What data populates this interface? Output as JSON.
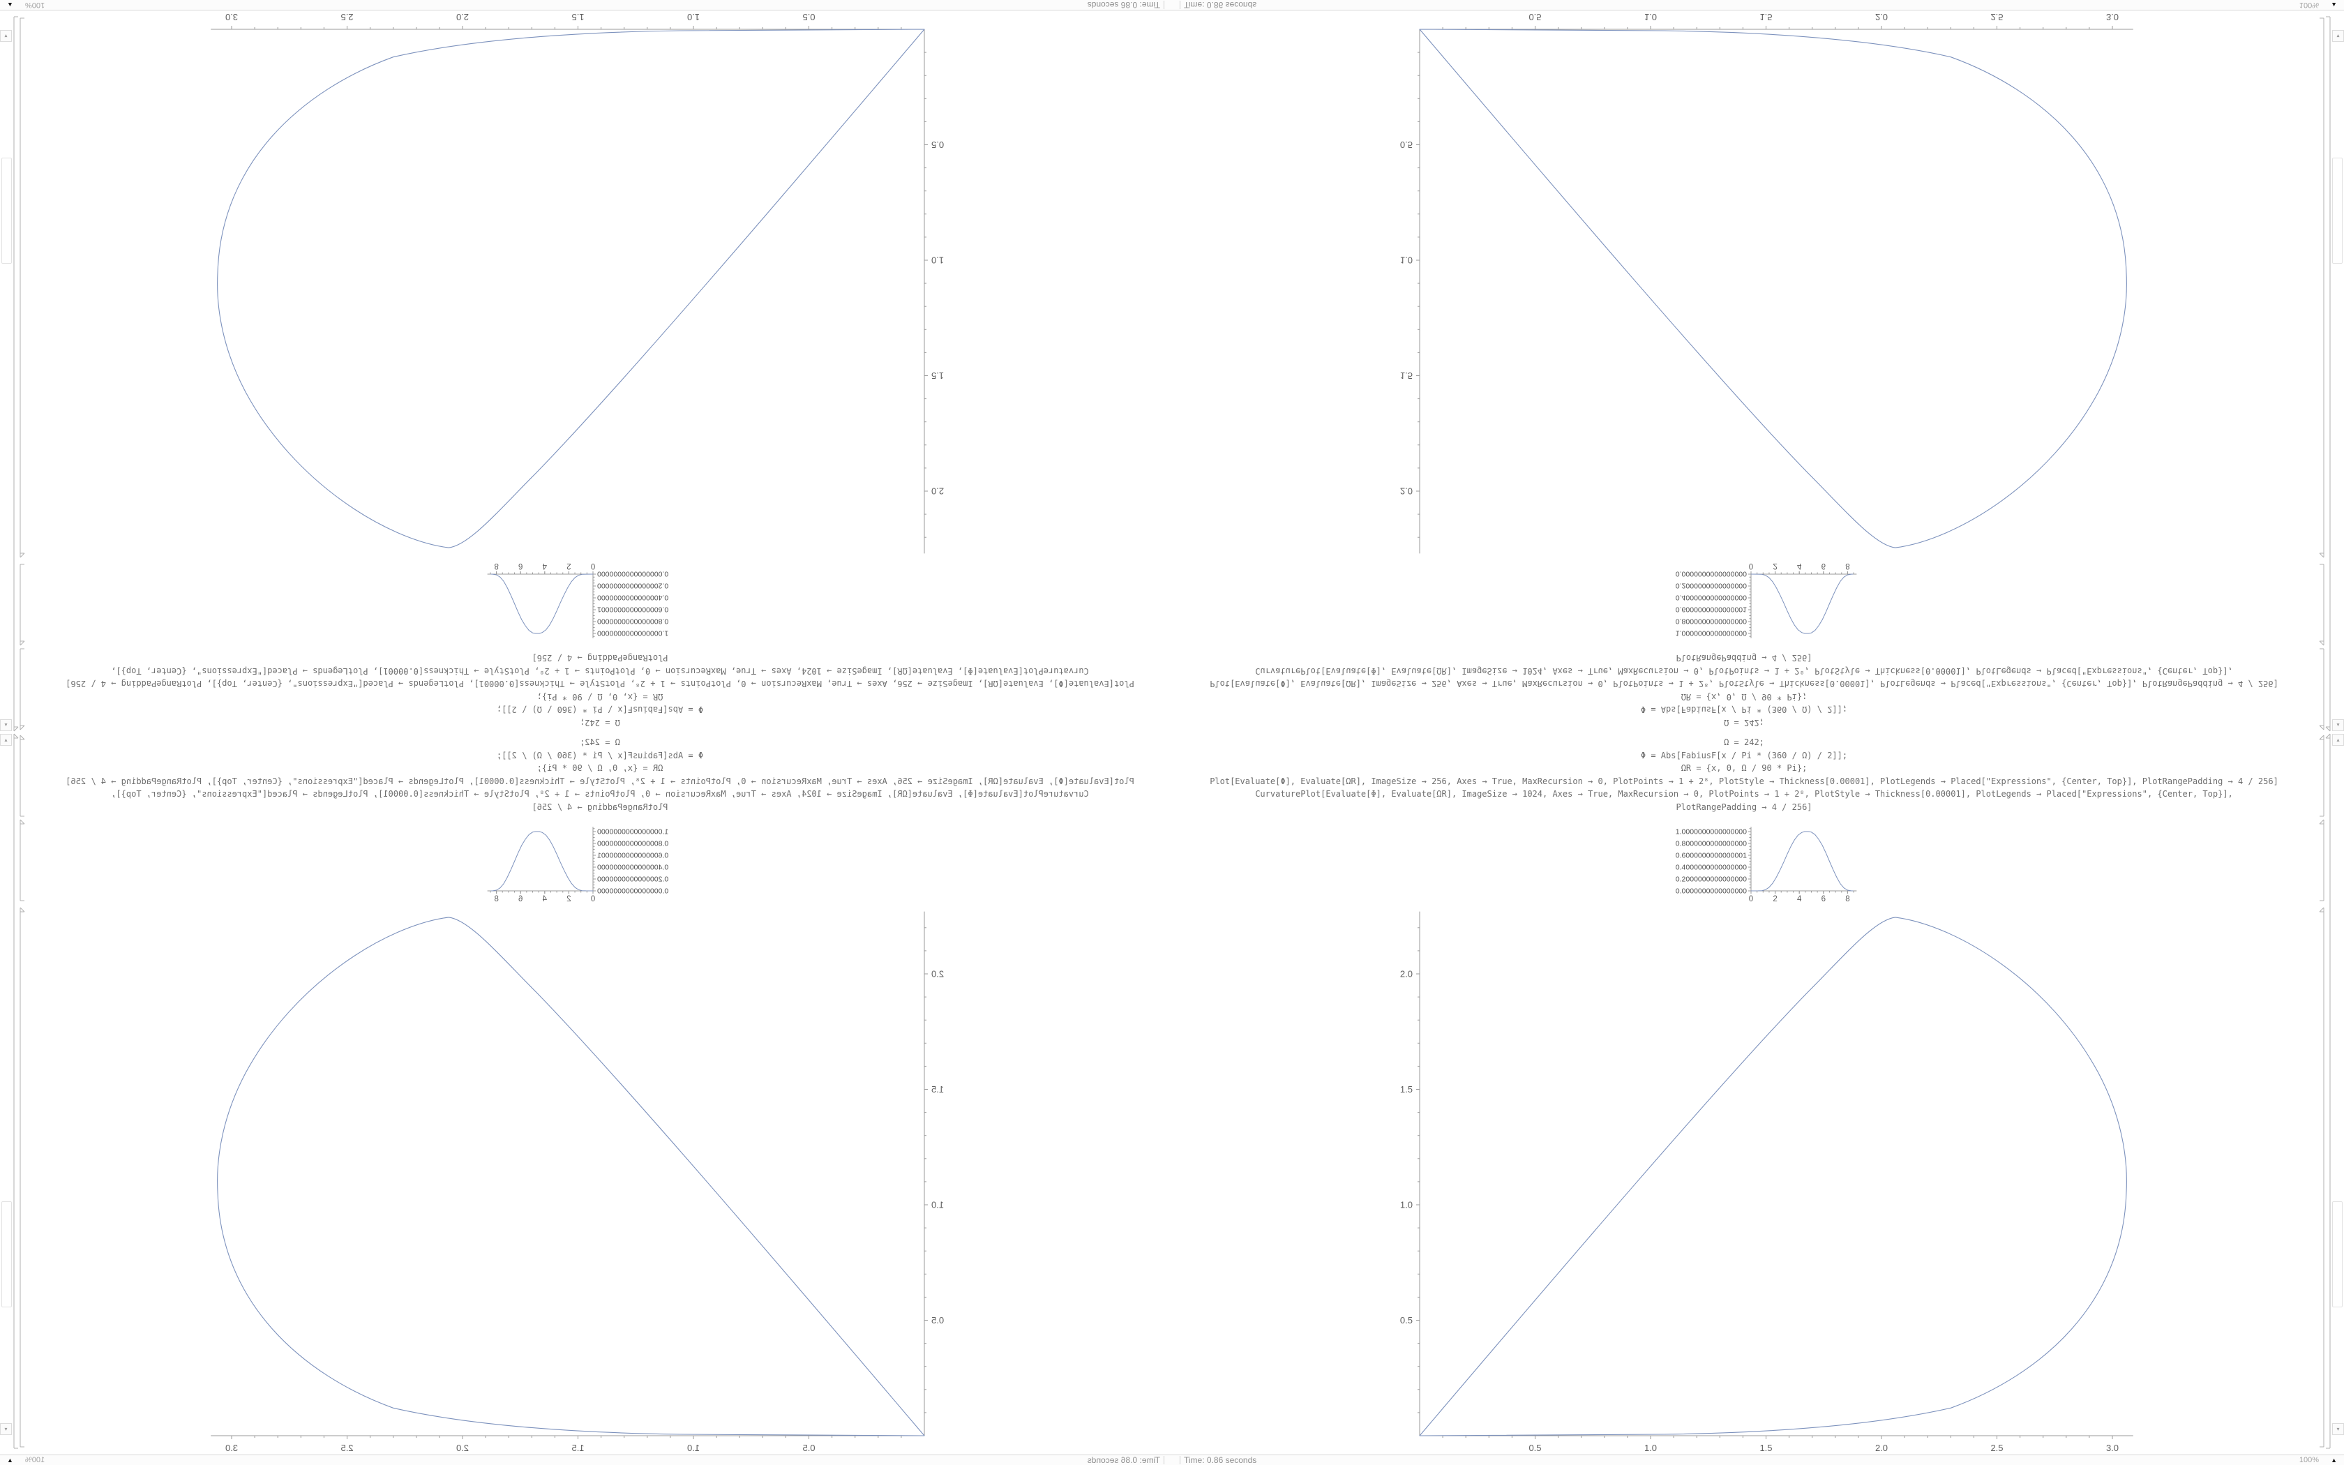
{
  "window": {
    "app": "Mathematica notebook",
    "status": {
      "time_label": "Time: 0.86 seconds",
      "zoom_label": "100%"
    },
    "icons": {
      "scroll_up": "▴",
      "scroll_down": "▾",
      "zoom_toggle": "▲"
    }
  },
  "notebook": {
    "code_lines": [
      "Ω = 242;",
      "Φ = Abs[FabiusF[x / Pi * (360 / Ω) / 2]];",
      "ΩR = {x, 0, Ω / 90 * Pi};",
      "Plot[Evaluate[Φ], Evaluate[ΩR], ImageSize → 256, Axes → True, MaxRecursion → 0, PlotPoints → 1 + 2⁸, PlotStyle → Thickness[0.00001], PlotLegends → Placed[\"Expressions\", {Center, Top}], PlotRangePadding → 4 / 256]",
      "CurvaturePlot[Evaluate[Φ], Evaluate[ΩR], ImageSize → 1024, Axes → True, MaxRecursion → 0, PlotPoints → 1 + 2⁸, PlotStyle → Thickness[0.00001], PlotLegends → Placed[\"Expressions\", {Center, Top}],",
      "PlotRangePadding → 4 / 256]"
    ]
  },
  "colors": {
    "curve": "#7d92bd",
    "axis": "#9a9a9a",
    "tick_label": "#5e5e5e",
    "small_y_label": "#4f4f4f",
    "bracket": "#b0b0b0"
  },
  "chart_data": [
    {
      "type": "line",
      "id": "fabius-function-plot",
      "title": "",
      "xlabel": "",
      "ylabel": "",
      "xlim": [
        0,
        8.75
      ],
      "ylim": [
        0,
        1.08
      ],
      "x_ticks": [
        0,
        2,
        4,
        6,
        8
      ],
      "x_tick_labels": [
        "0",
        "2",
        "4",
        "6",
        "8"
      ],
      "y_ticks": [
        1.0,
        0.8,
        0.6,
        0.4,
        0.2,
        0.0
      ],
      "y_tick_labels": [
        "1.0000000000000000",
        "0.8000000000000000",
        "0.6000000000000001",
        "0.4000000000000000",
        "0.2000000000000000",
        "0.0000000000000000"
      ],
      "points": [
        [
          0,
          0
        ],
        [
          0.6,
          0.001
        ],
        [
          0.9,
          0.004
        ],
        [
          1.2,
          0.02
        ],
        [
          1.5,
          0.06
        ],
        [
          1.8,
          0.13
        ],
        [
          2.1,
          0.23
        ],
        [
          2.4,
          0.35
        ],
        [
          2.7,
          0.48
        ],
        [
          3.0,
          0.62
        ],
        [
          3.3,
          0.75
        ],
        [
          3.6,
          0.86
        ],
        [
          3.9,
          0.94
        ],
        [
          4.2,
          0.985
        ],
        [
          4.45,
          1.0
        ],
        [
          4.75,
          1.0
        ],
        [
          5.0,
          0.99
        ],
        [
          5.3,
          0.95
        ],
        [
          5.6,
          0.87
        ],
        [
          5.9,
          0.77
        ],
        [
          6.2,
          0.64
        ],
        [
          6.5,
          0.5
        ],
        [
          6.8,
          0.36
        ],
        [
          7.1,
          0.23
        ],
        [
          7.4,
          0.12
        ],
        [
          7.7,
          0.05
        ],
        [
          8.0,
          0.012
        ],
        [
          8.3,
          0.001
        ],
        [
          8.45,
          0
        ]
      ]
    },
    {
      "type": "line",
      "id": "curvature-plot-teardrop",
      "title": "",
      "xlabel": "",
      "ylabel": "",
      "xlim": [
        0,
        3.09
      ],
      "ylim": [
        0,
        2.27
      ],
      "x_ticks": [
        0.5,
        1.0,
        1.5,
        2.0,
        2.5,
        3.0
      ],
      "x_tick_labels": [
        "0.5",
        "1.0",
        "1.5",
        "2.0",
        "2.5",
        "3.0"
      ],
      "y_ticks": [
        0.5,
        1.0,
        1.5,
        2.0
      ],
      "y_tick_labels": [
        "0.5",
        "1.0",
        "1.5",
        "2.0"
      ],
      "path": [
        [
          "M",
          0,
          0
        ],
        [
          "C",
          0.62,
          0.73,
          1.32,
          1.55,
          1.68,
          1.92
        ],
        [
          "C",
          1.84,
          2.08,
          1.97,
          2.235,
          2.06,
          2.245
        ],
        [
          "C",
          2.33,
          2.21,
          2.73,
          1.96,
          2.94,
          1.57
        ],
        [
          "C",
          3.03,
          1.4,
          3.07,
          1.22,
          3.06,
          1.05
        ],
        [
          "C",
          3.045,
          0.58,
          2.7,
          0.265,
          2.3,
          0.12
        ],
        [
          "C",
          1.97,
          0.045,
          1.52,
          0.012,
          1.06,
          0.006
        ],
        [
          "C",
          0.7,
          0.002,
          0.35,
          0.0,
          0,
          0
        ],
        [
          "Z"
        ]
      ]
    }
  ]
}
